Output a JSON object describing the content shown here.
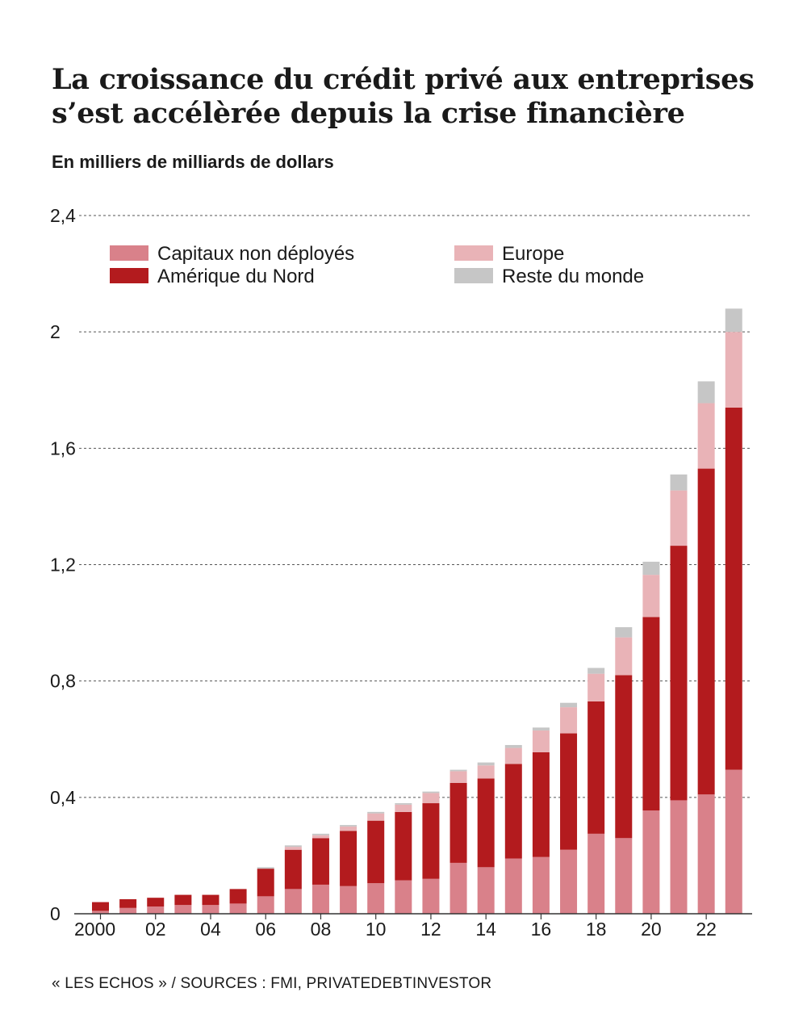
{
  "title_lines": [
    "La croissance du crédit privé aux entreprises",
    "s’est accélèrée depuis la crise financière"
  ],
  "subtitle": "En milliers de milliards de dollars",
  "source": "« LES ECHOS » / SOURCES : FMI, PRIVATEDEBTINVESTOR",
  "chart_data": {
    "type": "bar",
    "stacked": true,
    "title": "La croissance du crédit privé aux entreprises s’est accélèrée depuis la crise financière",
    "ylabel": "En milliers de milliards de dollars",
    "xlabel": "",
    "ylim": [
      0,
      2.4
    ],
    "yticks": [
      0,
      0.4,
      0.8,
      1.2,
      1.6,
      2,
      2.4
    ],
    "ytick_labels": [
      "0",
      "0,4",
      "0,8",
      "1,2",
      "1,6",
      "2",
      "2,4"
    ],
    "grid": "dotted horizontal",
    "legend_position": "top-left",
    "categories": [
      "2000",
      "2001",
      "2002",
      "2003",
      "2004",
      "2005",
      "2006",
      "2007",
      "2008",
      "2009",
      "2010",
      "2011",
      "2012",
      "2013",
      "2014",
      "2015",
      "2016",
      "2017",
      "2018",
      "2019",
      "2020",
      "2021",
      "2022",
      "2023"
    ],
    "xtick_labels": [
      "2000",
      "",
      "02",
      "",
      "04",
      "",
      "06",
      "",
      "08",
      "",
      "10",
      "",
      "12",
      "",
      "14",
      "",
      "16",
      "",
      "18",
      "",
      "20",
      "",
      "22",
      ""
    ],
    "series": [
      {
        "name": "Capitaux non déployés",
        "color": "#d9818a",
        "values": [
          0.01,
          0.02,
          0.025,
          0.03,
          0.03,
          0.035,
          0.06,
          0.085,
          0.1,
          0.095,
          0.105,
          0.115,
          0.12,
          0.175,
          0.16,
          0.19,
          0.195,
          0.22,
          0.275,
          0.26,
          0.355,
          0.39,
          0.41,
          0.495
        ]
      },
      {
        "name": "Amérique du Nord",
        "color": "#b31b1e",
        "values": [
          0.03,
          0.03,
          0.03,
          0.035,
          0.035,
          0.05,
          0.095,
          0.135,
          0.16,
          0.19,
          0.215,
          0.235,
          0.26,
          0.275,
          0.305,
          0.325,
          0.36,
          0.4,
          0.455,
          0.56,
          0.665,
          0.875,
          1.12,
          1.245
        ]
      },
      {
        "name": "Europe",
        "color": "#e9b3b7",
        "values": [
          0.0,
          0.0,
          0.0,
          0.0,
          0.0,
          0.0,
          0.0,
          0.01,
          0.01,
          0.015,
          0.025,
          0.025,
          0.035,
          0.04,
          0.045,
          0.055,
          0.075,
          0.09,
          0.095,
          0.13,
          0.145,
          0.19,
          0.225,
          0.26
        ]
      },
      {
        "name": "Reste du monde",
        "color": "#c6c6c6",
        "values": [
          0.0,
          0.0,
          0.0,
          0.0,
          0.0,
          0.0,
          0.005,
          0.005,
          0.005,
          0.005,
          0.005,
          0.005,
          0.005,
          0.005,
          0.01,
          0.01,
          0.01,
          0.015,
          0.02,
          0.035,
          0.045,
          0.055,
          0.075,
          0.08
        ]
      }
    ],
    "legend_layout": [
      [
        "Capitaux non déployés",
        "Europe"
      ],
      [
        "Amérique du Nord",
        "Reste du monde"
      ]
    ]
  }
}
